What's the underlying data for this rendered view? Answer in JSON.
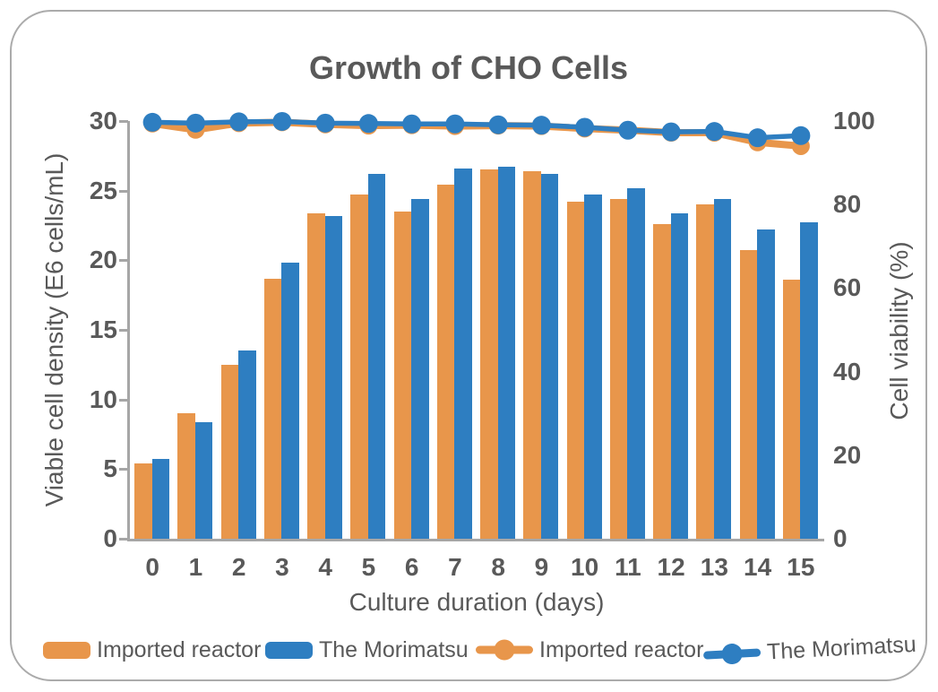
{
  "chart_data": {
    "type": "bar+line combo",
    "title": "Growth of CHO Cells",
    "categories": [
      0,
      1,
      2,
      3,
      4,
      5,
      6,
      7,
      8,
      9,
      10,
      11,
      12,
      13,
      14,
      15
    ],
    "x_axis": {
      "label": "Culture duration (days)"
    },
    "left_axis": {
      "label": "Viable cell density (E6 cells/mL)",
      "range": [
        0,
        30
      ],
      "ticks": [
        0,
        5,
        10,
        15,
        20,
        25,
        30
      ]
    },
    "right_axis": {
      "label": "Cell viability (%)",
      "range": [
        0,
        100
      ],
      "ticks": [
        0,
        20,
        40,
        60,
        80,
        100
      ]
    },
    "grid": false,
    "legend_position": "bottom",
    "bar_series": [
      {
        "name": "Imported reactor",
        "color": "#E8964B",
        "values": [
          5.4,
          9.0,
          12.5,
          18.7,
          23.4,
          24.7,
          23.5,
          25.4,
          26.5,
          26.4,
          24.2,
          24.4,
          22.6,
          24.0,
          20.7,
          18.6
        ]
      },
      {
        "name": "The Morimatsu",
        "color": "#2E7EC1",
        "values": [
          5.7,
          8.4,
          13.5,
          19.8,
          23.2,
          26.2,
          24.4,
          26.6,
          26.7,
          26.2,
          24.7,
          25.2,
          23.4,
          24.4,
          22.2,
          22.7
        ]
      }
    ],
    "line_series": [
      {
        "name": "Imported reactor",
        "color": "#E8964B",
        "values": [
          99.4,
          97.9,
          99.5,
          99.7,
          99.2,
          98.9,
          99.0,
          98.8,
          98.9,
          98.8,
          98.2,
          97.8,
          97.2,
          97.2,
          94.9,
          94.0
        ]
      },
      {
        "name": "The Morimatsu",
        "color": "#2E7EC1",
        "values": [
          99.7,
          99.5,
          99.8,
          99.9,
          99.5,
          99.4,
          99.3,
          99.3,
          99.1,
          99.0,
          98.5,
          97.8,
          97.4,
          97.5,
          96.0,
          96.5
        ]
      }
    ],
    "legend": [
      {
        "label": "Imported reactor",
        "marker": "bar-swatch",
        "color": "#E8964B"
      },
      {
        "label": "The Morimatsu",
        "marker": "bar-swatch",
        "color": "#2E7EC1"
      },
      {
        "label": "Imported reactor",
        "marker": "line-marker",
        "color": "#E8964B"
      },
      {
        "label": "The Morimatsu",
        "marker": "line-marker",
        "color": "#2E7EC1"
      }
    ],
    "colors": {
      "orange": "#E8964B",
      "blue": "#2E7EC1",
      "text": "#595959",
      "axis_line": "#A6A6A6"
    }
  }
}
